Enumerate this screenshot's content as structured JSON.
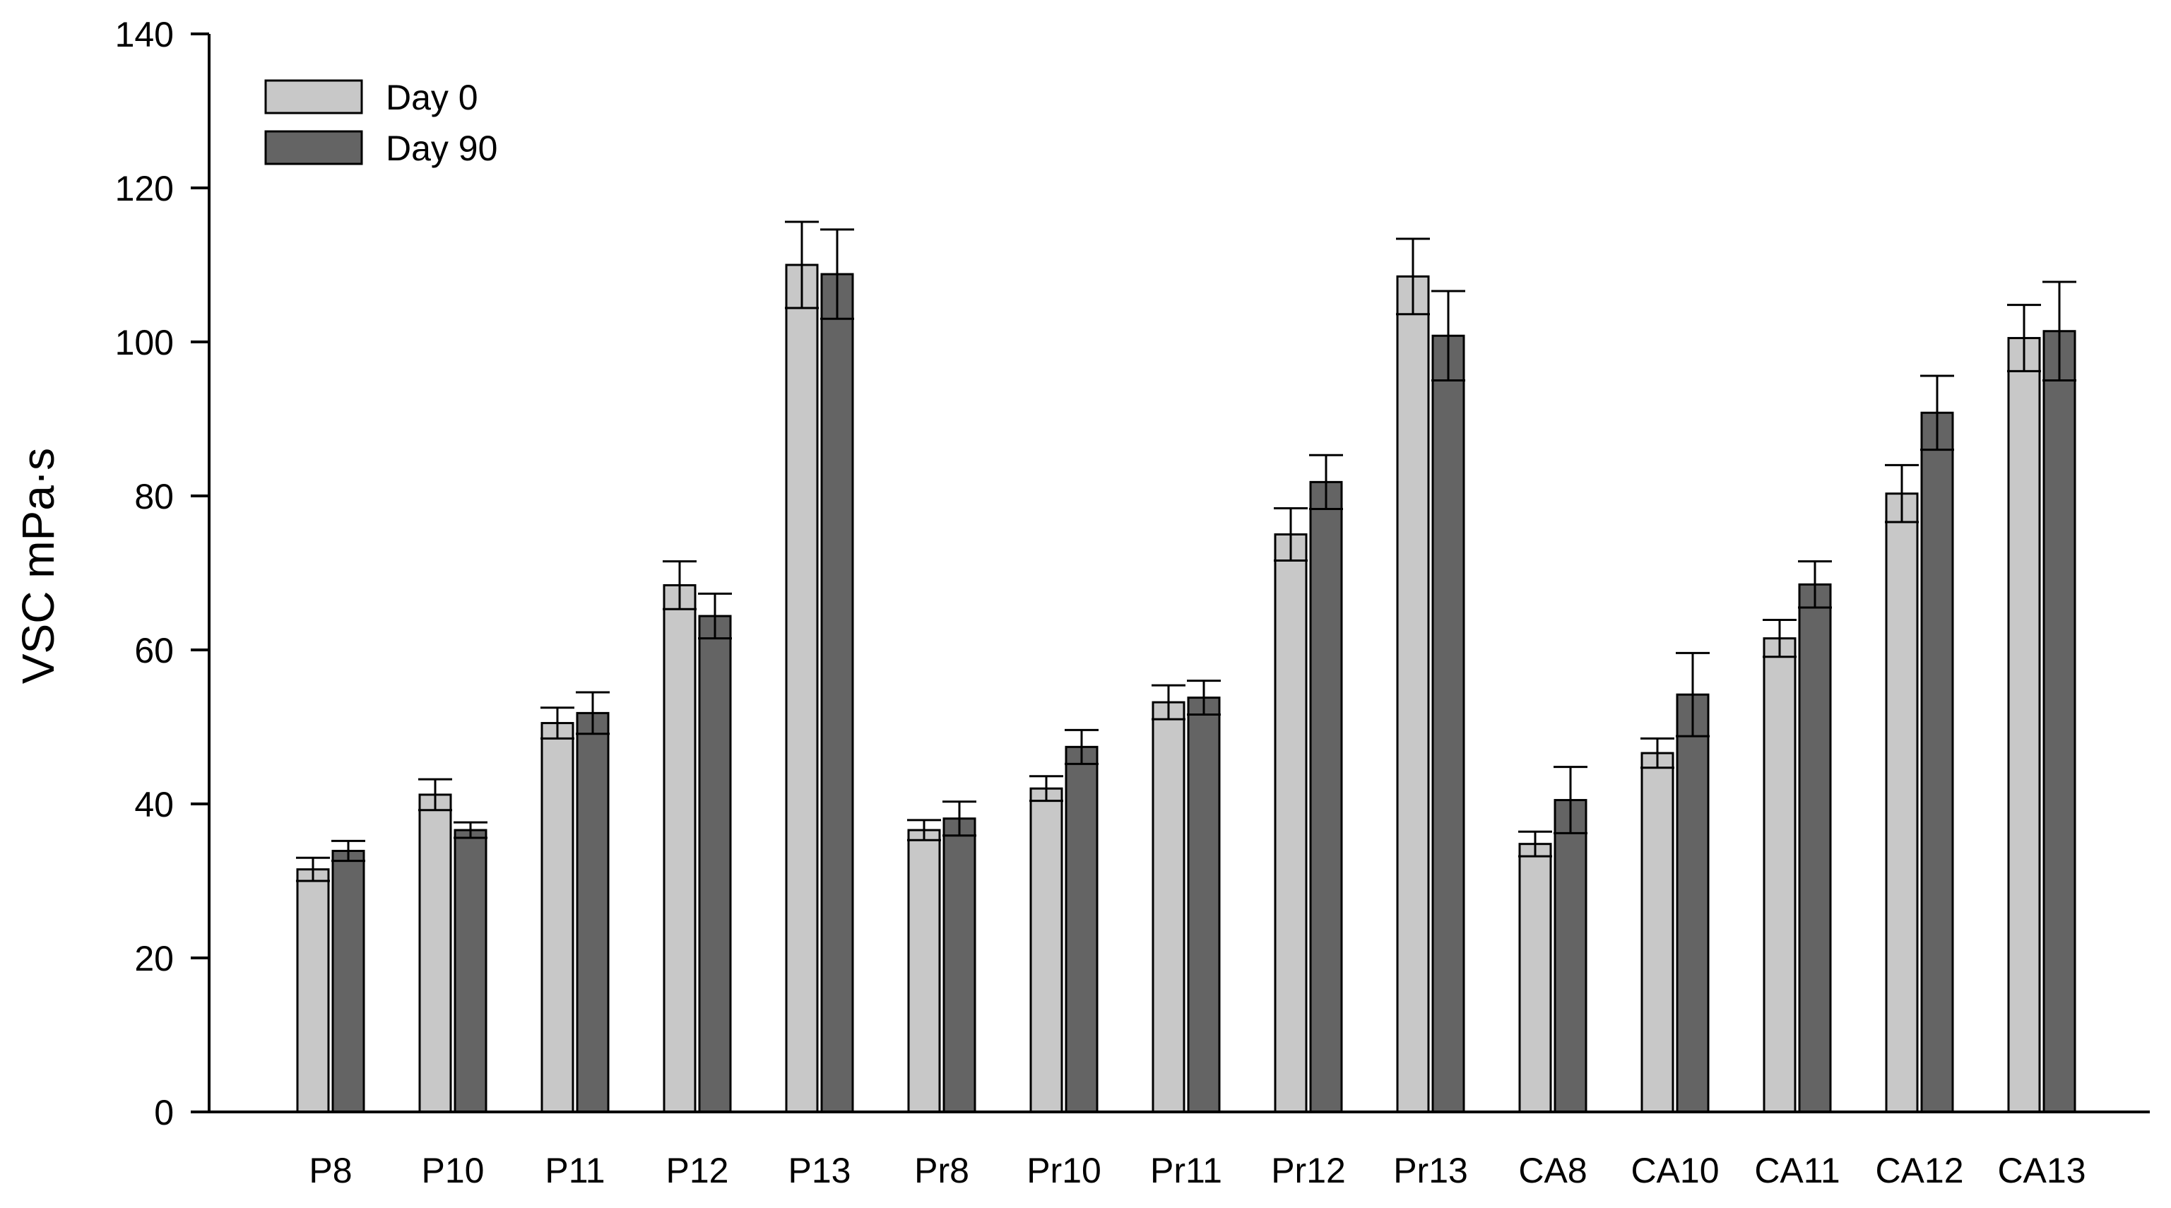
{
  "chart_data": {
    "type": "bar",
    "title": "",
    "xlabel": "",
    "ylabel": "VSC mPa·s",
    "ylim": [
      0,
      140
    ],
    "yticks": [
      0,
      20,
      40,
      60,
      80,
      100,
      120,
      140
    ],
    "ytick_labels": [
      "0",
      "20",
      "40",
      "60",
      "80",
      "100",
      "120",
      "140"
    ],
    "grid": false,
    "legend_position": "top-left",
    "categories": [
      "P8",
      "P10",
      "P11",
      "P12",
      "P13",
      "Pr8",
      "Pr10",
      "Pr11",
      "Pr12",
      "Pr13",
      "CA8",
      "CA10",
      "CA11",
      "CA12",
      "CA13"
    ],
    "series": [
      {
        "name": "Day 0",
        "color": "#c8c8c8",
        "values": [
          31.5,
          41.2,
          50.5,
          68.4,
          110.0,
          36.6,
          42.0,
          53.2,
          75.0,
          108.5,
          34.8,
          46.6,
          61.5,
          80.3,
          100.5
        ],
        "errors": [
          1.5,
          2.0,
          2.0,
          3.1,
          5.6,
          1.3,
          1.6,
          2.2,
          3.4,
          4.9,
          1.6,
          1.9,
          2.4,
          3.7,
          4.3
        ]
      },
      {
        "name": "Day 90",
        "color": "#646464",
        "values": [
          33.9,
          36.6,
          51.8,
          64.4,
          108.8,
          38.1,
          47.4,
          53.8,
          81.8,
          100.8,
          40.5,
          54.2,
          68.5,
          90.8,
          101.4
        ],
        "errors": [
          1.3,
          1.0,
          2.7,
          2.9,
          5.8,
          2.2,
          2.2,
          2.2,
          3.5,
          5.8,
          4.3,
          5.4,
          3.0,
          4.8,
          6.4
        ]
      }
    ]
  }
}
